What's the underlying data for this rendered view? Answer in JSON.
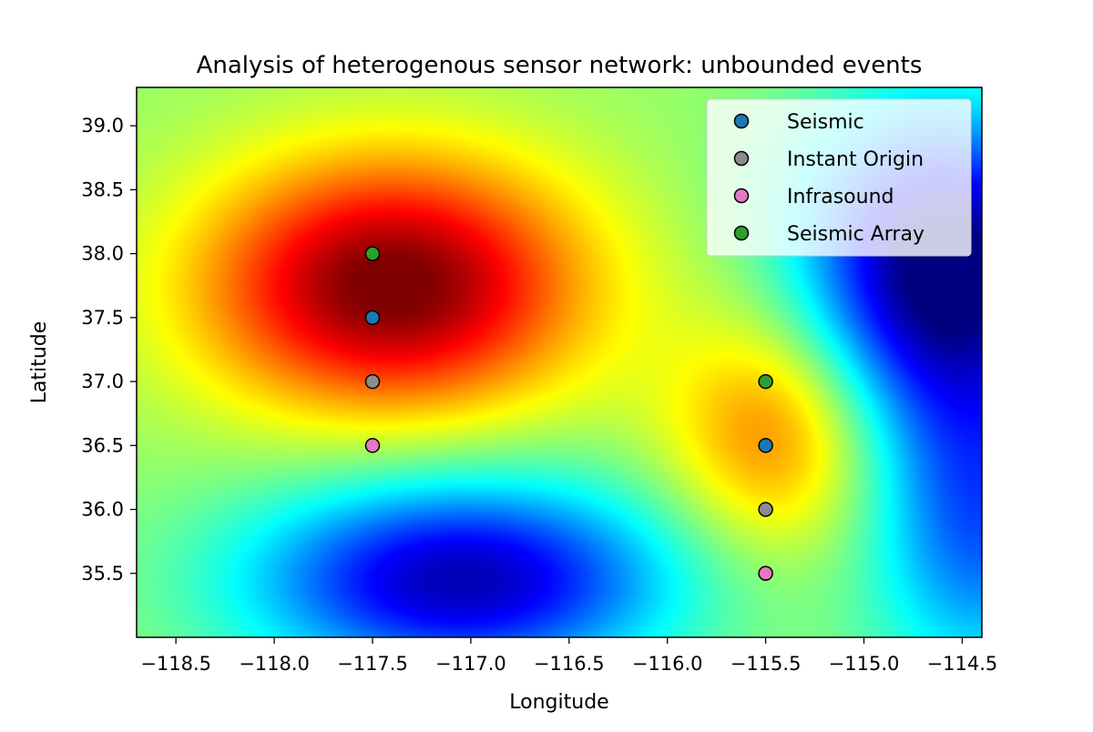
{
  "chart_data": {
    "type": "heatmap",
    "title": "Analysis of heterogenous sensor network: unbounded events",
    "xlabel": "Longitude",
    "ylabel": "Latitude",
    "xlim": [
      -118.7,
      -114.4
    ],
    "ylim": [
      35.0,
      39.3
    ],
    "xticks": [
      -118.5,
      -118.0,
      -117.5,
      -117.0,
      -116.5,
      -116.0,
      -115.5,
      -115.0,
      -114.5
    ],
    "xtick_labels": [
      "−118.5",
      "−118.0",
      "−117.5",
      "−117.0",
      "−116.5",
      "−116.0",
      "−115.5",
      "−115.0",
      "−114.5"
    ],
    "yticks": [
      35.5,
      36.0,
      36.5,
      37.0,
      37.5,
      38.0,
      38.5,
      39.0
    ],
    "ytick_labels": [
      "35.5",
      "36.0",
      "36.5",
      "37.0",
      "37.5",
      "38.0",
      "38.5",
      "39.0"
    ],
    "colormap": "jet",
    "grid": false,
    "legend_position": "top-right",
    "series": [
      {
        "name": "Seismic",
        "color": "#1f77b4",
        "points": [
          {
            "x": -117.5,
            "y": 37.5
          },
          {
            "x": -115.5,
            "y": 36.5
          }
        ]
      },
      {
        "name": "Instant Origin",
        "color": "#8c8c8c",
        "points": [
          {
            "x": -117.5,
            "y": 37.0
          },
          {
            "x": -115.5,
            "y": 36.0
          }
        ]
      },
      {
        "name": "Infrasound",
        "color": "#e377c2",
        "points": [
          {
            "x": -117.5,
            "y": 36.5
          },
          {
            "x": -115.5,
            "y": 35.5
          }
        ]
      },
      {
        "name": "Seismic Array",
        "color": "#2ca02c",
        "points": [
          {
            "x": -117.5,
            "y": 38.0
          },
          {
            "x": -115.5,
            "y": 37.0
          }
        ]
      }
    ],
    "field": {
      "baseline": 0.52,
      "components": [
        {
          "x": -117.4,
          "y": 37.75,
          "amplitude": 0.5,
          "sigma_x": 0.68,
          "sigma_y": 0.7
        },
        {
          "x": -115.45,
          "y": 36.6,
          "amplitude": 0.24,
          "sigma_x": 0.38,
          "sigma_y": 0.65
        },
        {
          "x": -117.05,
          "y": 35.45,
          "amplitude": -0.47,
          "sigma_x": 0.75,
          "sigma_y": 0.55
        },
        {
          "x": -114.6,
          "y": 37.9,
          "amplitude": -0.55,
          "sigma_x": 0.5,
          "sigma_y": 0.85
        },
        {
          "x": -114.4,
          "y": 35.9,
          "amplitude": -0.3,
          "sigma_x": 0.4,
          "sigma_y": 0.9
        }
      ]
    }
  }
}
